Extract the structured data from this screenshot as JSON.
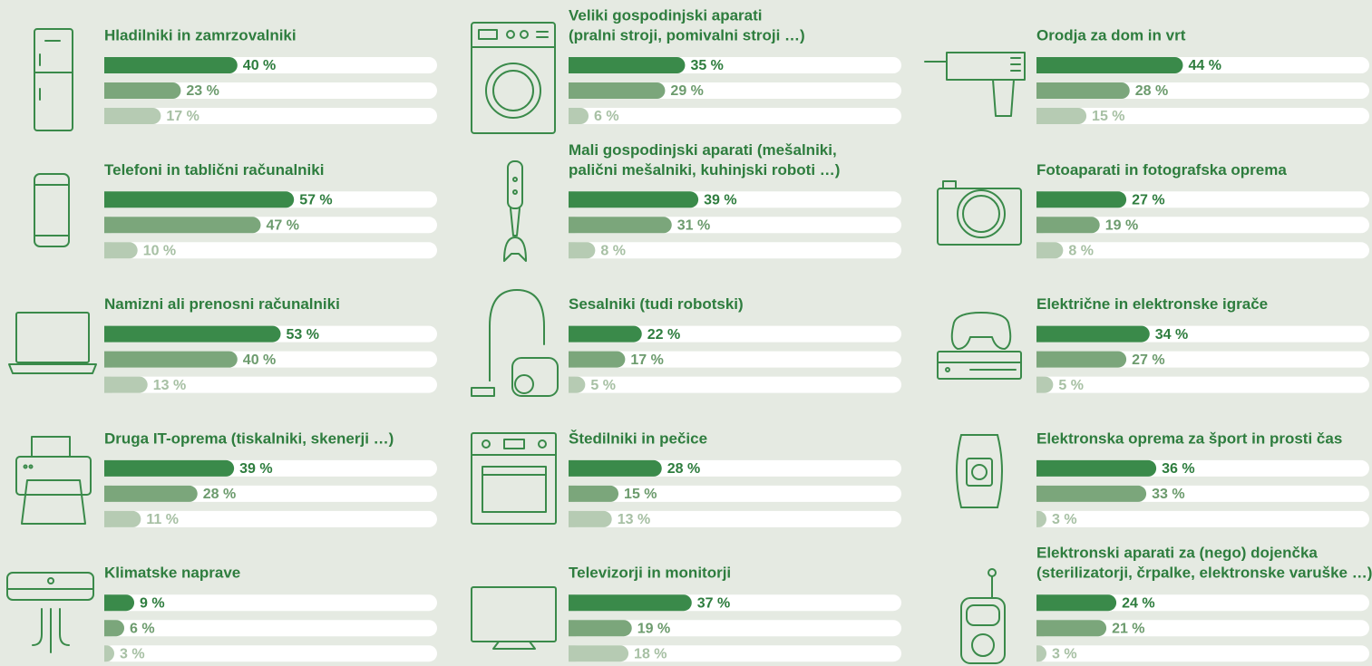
{
  "chart_data": [
    {
      "type": "bar",
      "title": [
        "Hladilniki in zamrzovalniki"
      ],
      "values": [
        40,
        23,
        17
      ],
      "value_labels": [
        "40 %",
        "23 %",
        "17 %"
      ],
      "colors": [
        "#3a8a4a",
        "#7ba67b",
        "#b6cbb3"
      ],
      "xlim": [
        0,
        100
      ]
    },
    {
      "type": "bar",
      "title": [
        "Telefoni in tablični računalniki"
      ],
      "values": [
        57,
        47,
        10
      ],
      "value_labels": [
        "57 %",
        "47 %",
        "10 %"
      ],
      "colors": [
        "#3a8a4a",
        "#7ba67b",
        "#b6cbb3"
      ],
      "xlim": [
        0,
        100
      ]
    },
    {
      "type": "bar",
      "title": [
        "Namizni ali prenosni računalniki"
      ],
      "values": [
        53,
        40,
        13
      ],
      "value_labels": [
        "53 %",
        "40 %",
        "13 %"
      ],
      "colors": [
        "#3a8a4a",
        "#7ba67b",
        "#b6cbb3"
      ],
      "xlim": [
        0,
        100
      ]
    },
    {
      "type": "bar",
      "title": [
        "Druga IT-oprema (tiskalniki, skenerji …)"
      ],
      "values": [
        39,
        28,
        11
      ],
      "value_labels": [
        "39 %",
        "28 %",
        "11 %"
      ],
      "colors": [
        "#3a8a4a",
        "#7ba67b",
        "#b6cbb3"
      ],
      "xlim": [
        0,
        100
      ]
    },
    {
      "type": "bar",
      "title": [
        "Klimatske naprave"
      ],
      "values": [
        9,
        6,
        3
      ],
      "value_labels": [
        "9 %",
        "6 %",
        "3 %"
      ],
      "colors": [
        "#3a8a4a",
        "#7ba67b",
        "#b6cbb3"
      ],
      "xlim": [
        0,
        100
      ]
    },
    {
      "type": "bar",
      "title": [
        "Veliki gospodinjski aparati",
        "(pralni stroji, pomivalni stroji …)"
      ],
      "values": [
        35,
        29,
        6
      ],
      "value_labels": [
        "35 %",
        "29 %",
        "6 %"
      ],
      "colors": [
        "#3a8a4a",
        "#7ba67b",
        "#b6cbb3"
      ],
      "xlim": [
        0,
        100
      ]
    },
    {
      "type": "bar",
      "title": [
        "Mali gospodinjski aparati (mešalniki,",
        "palični mešalniki, kuhinjski roboti …)"
      ],
      "values": [
        39,
        31,
        8
      ],
      "value_labels": [
        "39 %",
        "31 %",
        "8 %"
      ],
      "colors": [
        "#3a8a4a",
        "#7ba67b",
        "#b6cbb3"
      ],
      "xlim": [
        0,
        100
      ]
    },
    {
      "type": "bar",
      "title": [
        "Sesalniki (tudi robotski)"
      ],
      "values": [
        22,
        17,
        5
      ],
      "value_labels": [
        "22 %",
        "17 %",
        "5 %"
      ],
      "colors": [
        "#3a8a4a",
        "#7ba67b",
        "#b6cbb3"
      ],
      "xlim": [
        0,
        100
      ]
    },
    {
      "type": "bar",
      "title": [
        "Štedilniki in pečice"
      ],
      "values": [
        28,
        15,
        13
      ],
      "value_labels": [
        "28 %",
        "15 %",
        "13 %"
      ],
      "colors": [
        "#3a8a4a",
        "#7ba67b",
        "#b6cbb3"
      ],
      "xlim": [
        0,
        100
      ]
    },
    {
      "type": "bar",
      "title": [
        "Televizorji in monitorji"
      ],
      "values": [
        37,
        19,
        18
      ],
      "value_labels": [
        "37 %",
        "19 %",
        "18 %"
      ],
      "colors": [
        "#3a8a4a",
        "#7ba67b",
        "#b6cbb3"
      ],
      "xlim": [
        0,
        100
      ]
    },
    {
      "type": "bar",
      "title": [
        "Orodja za dom in vrt"
      ],
      "values": [
        44,
        28,
        15
      ],
      "value_labels": [
        "44 %",
        "28 %",
        "15 %"
      ],
      "colors": [
        "#3a8a4a",
        "#7ba67b",
        "#b6cbb3"
      ],
      "xlim": [
        0,
        100
      ]
    },
    {
      "type": "bar",
      "title": [
        "Fotoaparati in fotografska oprema"
      ],
      "values": [
        27,
        19,
        8
      ],
      "value_labels": [
        "27 %",
        "19 %",
        "8 %"
      ],
      "colors": [
        "#3a8a4a",
        "#7ba67b",
        "#b6cbb3"
      ],
      "xlim": [
        0,
        100
      ]
    },
    {
      "type": "bar",
      "title": [
        "Električne in elektronske igrače"
      ],
      "values": [
        34,
        27,
        5
      ],
      "value_labels": [
        "34 %",
        "27 %",
        "5 %"
      ],
      "colors": [
        "#3a8a4a",
        "#7ba67b",
        "#b6cbb3"
      ],
      "xlim": [
        0,
        100
      ]
    },
    {
      "type": "bar",
      "title": [
        "Elektronska oprema za šport in prosti čas"
      ],
      "values": [
        36,
        33,
        3
      ],
      "value_labels": [
        "36 %",
        "33 %",
        "3 %"
      ],
      "colors": [
        "#3a8a4a",
        "#7ba67b",
        "#b6cbb3"
      ],
      "xlim": [
        0,
        100
      ]
    },
    {
      "type": "bar",
      "title": [
        "Elektronski aparati za (nego) dojenčka",
        "(sterilizatorji, črpalke, elektronske varuške …)"
      ],
      "values": [
        24,
        21,
        3
      ],
      "value_labels": [
        "24 %",
        "21 %",
        "3 %"
      ],
      "colors": [
        "#3a8a4a",
        "#7ba67b",
        "#b6cbb3"
      ],
      "xlim": [
        0,
        100
      ]
    }
  ]
}
